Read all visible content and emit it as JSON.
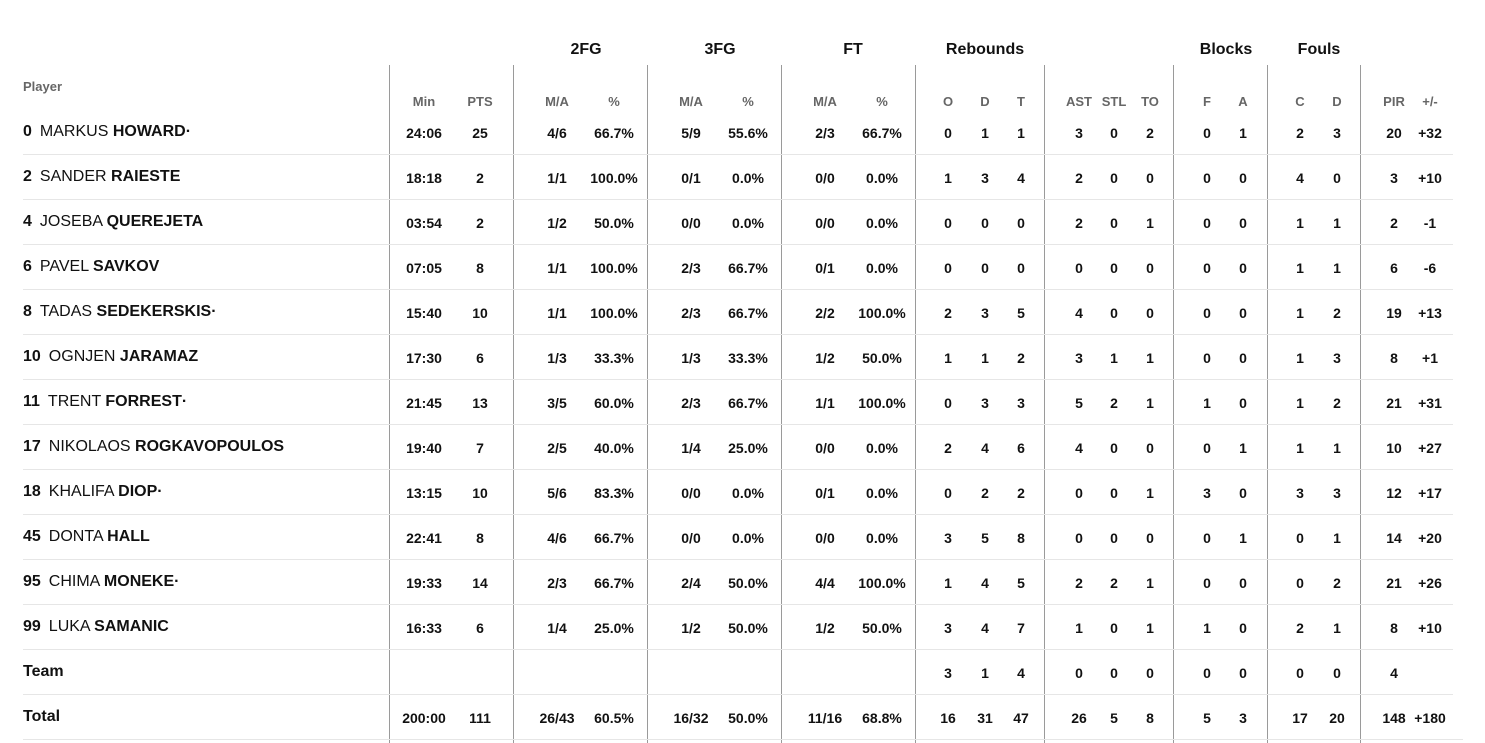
{
  "headers": {
    "player": "Player",
    "groups": [
      "2FG",
      "3FG",
      "FT",
      "Rebounds",
      "Blocks",
      "Fouls"
    ],
    "columns": [
      "Min",
      "PTS",
      "M/A",
      "%",
      "M/A",
      "%",
      "M/A",
      "%",
      "O",
      "D",
      "T",
      "AST",
      "STL",
      "TO",
      "F",
      "A",
      "C",
      "D",
      "PIR",
      "+/-"
    ]
  },
  "players": [
    {
      "num": "0",
      "first": "MARKUS",
      "last": "HOWARD·",
      "stats": [
        "24:06",
        "25",
        "4/6",
        "66.7%",
        "5/9",
        "55.6%",
        "2/3",
        "66.7%",
        "0",
        "1",
        "1",
        "3",
        "0",
        "2",
        "0",
        "1",
        "2",
        "3",
        "20",
        "+32"
      ]
    },
    {
      "num": "2",
      "first": "SANDER",
      "last": "RAIESTE",
      "stats": [
        "18:18",
        "2",
        "1/1",
        "100.0%",
        "0/1",
        "0.0%",
        "0/0",
        "0.0%",
        "1",
        "3",
        "4",
        "2",
        "0",
        "0",
        "0",
        "0",
        "4",
        "0",
        "3",
        "+10"
      ]
    },
    {
      "num": "4",
      "first": "JOSEBA",
      "last": "QUEREJETA",
      "stats": [
        "03:54",
        "2",
        "1/2",
        "50.0%",
        "0/0",
        "0.0%",
        "0/0",
        "0.0%",
        "0",
        "0",
        "0",
        "2",
        "0",
        "1",
        "0",
        "0",
        "1",
        "1",
        "2",
        "-1"
      ]
    },
    {
      "num": "6",
      "first": "PAVEL",
      "last": "SAVKOV",
      "stats": [
        "07:05",
        "8",
        "1/1",
        "100.0%",
        "2/3",
        "66.7%",
        "0/1",
        "0.0%",
        "0",
        "0",
        "0",
        "0",
        "0",
        "0",
        "0",
        "0",
        "1",
        "1",
        "6",
        "-6"
      ]
    },
    {
      "num": "8",
      "first": "TADAS",
      "last": "SEDEKERSKIS·",
      "stats": [
        "15:40",
        "10",
        "1/1",
        "100.0%",
        "2/3",
        "66.7%",
        "2/2",
        "100.0%",
        "2",
        "3",
        "5",
        "4",
        "0",
        "0",
        "0",
        "0",
        "1",
        "2",
        "19",
        "+13"
      ]
    },
    {
      "num": "10",
      "first": "OGNJEN",
      "last": "JARAMAZ",
      "stats": [
        "17:30",
        "6",
        "1/3",
        "33.3%",
        "1/3",
        "33.3%",
        "1/2",
        "50.0%",
        "1",
        "1",
        "2",
        "3",
        "1",
        "1",
        "0",
        "0",
        "1",
        "3",
        "8",
        "+1"
      ]
    },
    {
      "num": "11",
      "first": "TRENT",
      "last": "FORREST·",
      "stats": [
        "21:45",
        "13",
        "3/5",
        "60.0%",
        "2/3",
        "66.7%",
        "1/1",
        "100.0%",
        "0",
        "3",
        "3",
        "5",
        "2",
        "1",
        "1",
        "0",
        "1",
        "2",
        "21",
        "+31"
      ]
    },
    {
      "num": "17",
      "first": "NIKOLAOS",
      "last": "ROGKAVOPOULOS",
      "stats": [
        "19:40",
        "7",
        "2/5",
        "40.0%",
        "1/4",
        "25.0%",
        "0/0",
        "0.0%",
        "2",
        "4",
        "6",
        "4",
        "0",
        "0",
        "0",
        "1",
        "1",
        "1",
        "10",
        "+27"
      ]
    },
    {
      "num": "18",
      "first": "KHALIFA",
      "last": "DIOP·",
      "stats": [
        "13:15",
        "10",
        "5/6",
        "83.3%",
        "0/0",
        "0.0%",
        "0/1",
        "0.0%",
        "0",
        "2",
        "2",
        "0",
        "0",
        "1",
        "3",
        "0",
        "3",
        "3",
        "12",
        "+17"
      ]
    },
    {
      "num": "45",
      "first": "DONTA",
      "last": "HALL",
      "stats": [
        "22:41",
        "8",
        "4/6",
        "66.7%",
        "0/0",
        "0.0%",
        "0/0",
        "0.0%",
        "3",
        "5",
        "8",
        "0",
        "0",
        "0",
        "0",
        "1",
        "0",
        "1",
        "14",
        "+20"
      ]
    },
    {
      "num": "95",
      "first": "CHIMA",
      "last": "MONEKE·",
      "stats": [
        "19:33",
        "14",
        "2/3",
        "66.7%",
        "2/4",
        "50.0%",
        "4/4",
        "100.0%",
        "1",
        "4",
        "5",
        "2",
        "2",
        "1",
        "0",
        "0",
        "0",
        "2",
        "21",
        "+26"
      ]
    },
    {
      "num": "99",
      "first": "LUKA",
      "last": "SAMANIC",
      "stats": [
        "16:33",
        "6",
        "1/4",
        "25.0%",
        "1/2",
        "50.0%",
        "1/2",
        "50.0%",
        "3",
        "4",
        "7",
        "1",
        "0",
        "1",
        "1",
        "0",
        "2",
        "1",
        "8",
        "+10"
      ]
    }
  ],
  "team": {
    "label": "Team",
    "stats": [
      "",
      "",
      "",
      "",
      "",
      "",
      "",
      "",
      "3",
      "1",
      "4",
      "0",
      "0",
      "0",
      "0",
      "0",
      "0",
      "0",
      "4",
      ""
    ]
  },
  "total": {
    "label": "Total",
    "stats": [
      "200:00",
      "111",
      "26/43",
      "60.5%",
      "16/32",
      "50.0%",
      "11/16",
      "68.8%",
      "16",
      "31",
      "47",
      "26",
      "5",
      "8",
      "5",
      "3",
      "17",
      "20",
      "148",
      "+180"
    ]
  }
}
